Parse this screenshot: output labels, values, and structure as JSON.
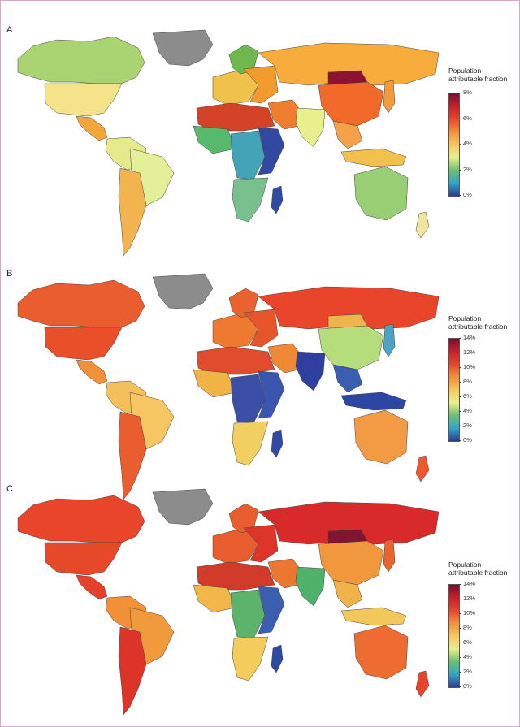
{
  "panels": [
    {
      "label": "A",
      "legend": {
        "title_line1": "Population",
        "title_line2": "attributable fraction",
        "ticks": [
          "8%",
          "6%",
          "4%",
          "2%",
          "0%"
        ]
      },
      "scale_max_percent": 8,
      "regions": {
        "north_america_canada": "#a9d471",
        "usa": "#f4e38a",
        "greenland": "#8c8c8c",
        "central_america": "#f5a53c",
        "south_america_north": "#e6ea8c",
        "brazil": "#e3ef99",
        "south_america_south": "#f3b34e",
        "europe_west": "#f0c24b",
        "scandinavia": "#6fb84e",
        "europe_east": "#f39a2e",
        "russia": "#f7ac3b",
        "north_africa": "#d44328",
        "west_africa": "#57b96b",
        "central_africa": "#43a4b8",
        "east_africa": "#3249a2",
        "southern_africa": "#78c18f",
        "madagascar": "#2f4aa6",
        "middle_east": "#ef7f2e",
        "india": "#e9ef8c",
        "china": "#f16a2a",
        "mongolia": "#8b1230",
        "southeast_asia": "#f3a24a",
        "indonesia": "#f2c04c",
        "australia": "#98cf74",
        "new_zealand": "#f0e79d",
        "japan": "#f39b3c"
      }
    },
    {
      "label": "B",
      "legend": {
        "title_line1": "Population",
        "title_line2": "attributable fraction",
        "ticks": [
          "14%",
          "12%",
          "10%",
          "8%",
          "6%",
          "4%",
          "2%",
          "0%"
        ]
      },
      "scale_max_percent": 14,
      "regions": {
        "north_america_canada": "#ea5d2e",
        "usa": "#e9502a",
        "greenland": "#8c8c8c",
        "central_america": "#f2913a",
        "south_america_north": "#f4c05a",
        "brazil": "#f5c661",
        "south_america_south": "#ea5d2e",
        "europe_west": "#ee7a31",
        "scandinavia": "#ea622e",
        "europe_east": "#e9552b",
        "russia": "#e8452b",
        "north_africa": "#e14c2c",
        "west_africa": "#f1b246",
        "central_africa": "#3c4fa8",
        "east_africa": "#3a55ad",
        "southern_africa": "#f1d061",
        "madagascar": "#2f4aa6",
        "middle_east": "#ee8a36",
        "india": "#2e3f9f",
        "china": "#b6dd7c",
        "mongolia": "#f0b44e",
        "southeast_asia": "#3b5fb0",
        "indonesia": "#2e46a3",
        "australia": "#f29a44",
        "new_zealand": "#ea5a2e",
        "japan": "#4da3c4"
      }
    },
    {
      "label": "C",
      "legend": {
        "title_line1": "Population",
        "title_line2": "attributable fraction",
        "ticks": [
          "14%",
          "12%",
          "10%",
          "8%",
          "6%",
          "4%",
          "2%",
          "0%"
        ]
      },
      "scale_max_percent": 14,
      "regions": {
        "north_america_canada": "#e8452b",
        "usa": "#e6482a",
        "greenland": "#8c8c8c",
        "central_america": "#e5402a",
        "south_america_north": "#f19037",
        "brazil": "#f09a3c",
        "south_america_south": "#dc3428",
        "europe_west": "#e85c2d",
        "scandinavia": "#e95e2e",
        "europe_east": "#dd3528",
        "russia": "#d92a2b",
        "north_africa": "#d23a2a",
        "west_africa": "#f1b748",
        "central_africa": "#5db36c",
        "east_africa": "#3b5eb0",
        "southern_africa": "#f3cc5b",
        "madagascar": "#2f4aa6",
        "middle_east": "#ec7730",
        "india": "#4eb26a",
        "china": "#f1983c",
        "mongolia": "#7f1530",
        "southeast_asia": "#f2b24b",
        "indonesia": "#f3c85a",
        "australia": "#ee6b31",
        "new_zealand": "#e5452b",
        "japan": "#ea642e"
      }
    }
  ]
}
